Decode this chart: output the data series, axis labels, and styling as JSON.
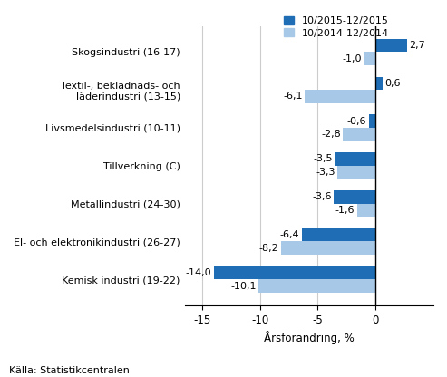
{
  "categories": [
    "Kemisk industri (19-22)",
    "El- och elektronikindustri (26-27)",
    "Metallindustri (24-30)",
    "Tillverkning (C)",
    "Livsmedelsindustri (10-11)",
    "Textil-, beklädnads- och\nläderindustri (13-15)",
    "Skogsindustri (16-17)"
  ],
  "series1_values": [
    -14.0,
    -6.4,
    -3.6,
    -3.5,
    -0.6,
    0.6,
    2.7
  ],
  "series2_values": [
    -10.1,
    -8.2,
    -1.6,
    -3.3,
    -2.8,
    -6.1,
    -1.0
  ],
  "series1_label": "10/2015-12/2015",
  "series2_label": "10/2014-12/2014",
  "series1_color": "#1f6eb5",
  "series2_color": "#a8c8e8",
  "xlabel": "Årsförändring, %",
  "xlim": [
    -16.5,
    5
  ],
  "xticks": [
    -15,
    -10,
    -5,
    0
  ],
  "source_text": "Källa: Statistikcentralen",
  "bar_height": 0.35,
  "background_color": "#ffffff",
  "grid_color": "#cccccc",
  "label_fontsize": 8,
  "axis_fontsize": 8.5,
  "legend_fontsize": 8
}
